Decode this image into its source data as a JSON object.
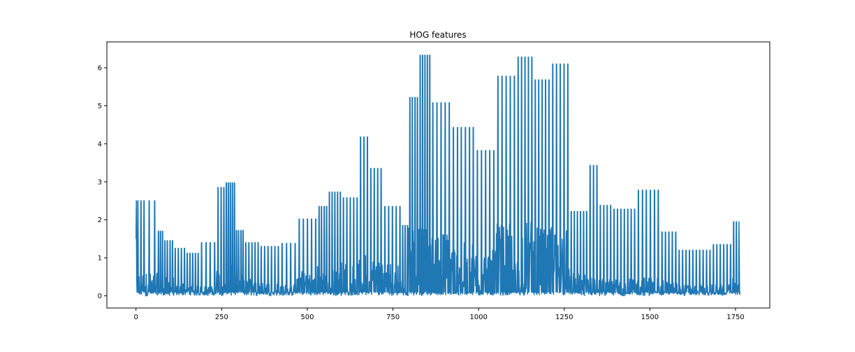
{
  "chart_data": {
    "type": "line",
    "title": "HOG features",
    "xlabel": "",
    "ylabel": "",
    "xlim": [
      -85,
      1850
    ],
    "ylim": [
      -0.32,
      6.68
    ],
    "xticks": [
      0,
      250,
      500,
      750,
      1000,
      1250,
      1500,
      1750
    ],
    "yticks": [
      0,
      1,
      2,
      3,
      4,
      5,
      6
    ],
    "grid": false,
    "legend": "none",
    "n_points": 1764,
    "series": [
      {
        "color": "#1f77b4",
        "segments": [
          {
            "x0": 0,
            "x1": 28,
            "peak": 2.5,
            "count": 3,
            "noise": 0.6
          },
          {
            "x0": 30,
            "x1": 62,
            "peak": 2.5,
            "count": 2,
            "noise": 0.6
          },
          {
            "x0": 62,
            "x1": 80,
            "peak": 1.7,
            "count": 3,
            "noise": 0.5
          },
          {
            "x0": 80,
            "x1": 110,
            "peak": 1.45,
            "count": 4,
            "noise": 0.5
          },
          {
            "x0": 110,
            "x1": 145,
            "peak": 1.25,
            "count": 4,
            "noise": 0.35
          },
          {
            "x0": 145,
            "x1": 185,
            "peak": 1.12,
            "count": 5,
            "noise": 0.3
          },
          {
            "x0": 185,
            "x1": 235,
            "peak": 1.4,
            "count": 4,
            "noise": 0.25
          },
          {
            "x0": 235,
            "x1": 260,
            "peak": 2.85,
            "count": 3,
            "noise": 0.7
          },
          {
            "x0": 260,
            "x1": 290,
            "peak": 2.97,
            "count": 5,
            "noise": 0.8
          },
          {
            "x0": 290,
            "x1": 315,
            "peak": 1.72,
            "count": 4,
            "noise": 0.6
          },
          {
            "x0": 315,
            "x1": 360,
            "peak": 1.4,
            "count": 5,
            "noise": 0.45
          },
          {
            "x0": 360,
            "x1": 420,
            "peak": 1.3,
            "count": 6,
            "noise": 0.35
          },
          {
            "x0": 420,
            "x1": 470,
            "peak": 1.38,
            "count": 4,
            "noise": 0.3
          },
          {
            "x0": 470,
            "x1": 530,
            "peak": 2.02,
            "count": 5,
            "noise": 0.7
          },
          {
            "x0": 530,
            "x1": 560,
            "peak": 2.35,
            "count": 4,
            "noise": 0.8
          },
          {
            "x0": 560,
            "x1": 600,
            "peak": 2.73,
            "count": 5,
            "noise": 0.9
          },
          {
            "x0": 600,
            "x1": 650,
            "peak": 2.58,
            "count": 5,
            "noise": 0.9
          },
          {
            "x0": 650,
            "x1": 680,
            "peak": 4.18,
            "count": 3,
            "noise": 1.1
          },
          {
            "x0": 680,
            "x1": 720,
            "peak": 3.35,
            "count": 4,
            "noise": 1.0
          },
          {
            "x0": 720,
            "x1": 775,
            "peak": 2.35,
            "count": 5,
            "noise": 0.9
          },
          {
            "x0": 775,
            "x1": 795,
            "peak": 1.85,
            "count": 3,
            "noise": 0.5
          },
          {
            "x0": 795,
            "x1": 825,
            "peak": 5.22,
            "count": 4,
            "noise": 1.8
          },
          {
            "x0": 825,
            "x1": 860,
            "peak": 6.33,
            "count": 5,
            "noise": 2.1
          },
          {
            "x0": 860,
            "x1": 920,
            "peak": 5.08,
            "count": 5,
            "noise": 1.7
          },
          {
            "x0": 920,
            "x1": 990,
            "peak": 4.43,
            "count": 6,
            "noise": 1.4
          },
          {
            "x0": 990,
            "x1": 1050,
            "peak": 3.82,
            "count": 5,
            "noise": 1.2
          },
          {
            "x0": 1050,
            "x1": 1110,
            "peak": 5.78,
            "count": 5,
            "noise": 1.9
          },
          {
            "x0": 1110,
            "x1": 1160,
            "peak": 6.28,
            "count": 5,
            "noise": 2.0
          },
          {
            "x0": 1160,
            "x1": 1210,
            "peak": 5.68,
            "count": 5,
            "noise": 1.8
          },
          {
            "x0": 1210,
            "x1": 1265,
            "peak": 6.1,
            "count": 5,
            "noise": 1.9
          },
          {
            "x0": 1265,
            "x1": 1320,
            "peak": 2.22,
            "count": 6,
            "noise": 0.6
          },
          {
            "x0": 1320,
            "x1": 1350,
            "peak": 3.43,
            "count": 3,
            "noise": 0.6
          },
          {
            "x0": 1350,
            "x1": 1390,
            "peak": 2.38,
            "count": 4,
            "noise": 0.45
          },
          {
            "x0": 1390,
            "x1": 1460,
            "peak": 2.28,
            "count": 7,
            "noise": 0.45
          },
          {
            "x0": 1460,
            "x1": 1530,
            "peak": 2.78,
            "count": 6,
            "noise": 0.5
          },
          {
            "x0": 1530,
            "x1": 1580,
            "peak": 1.68,
            "count": 5,
            "noise": 0.4
          },
          {
            "x0": 1580,
            "x1": 1680,
            "peak": 1.2,
            "count": 10,
            "noise": 0.3
          },
          {
            "x0": 1680,
            "x1": 1740,
            "peak": 1.35,
            "count": 6,
            "noise": 0.3
          },
          {
            "x0": 1740,
            "x1": 1764,
            "peak": 1.95,
            "count": 3,
            "noise": 0.45
          }
        ]
      }
    ]
  }
}
